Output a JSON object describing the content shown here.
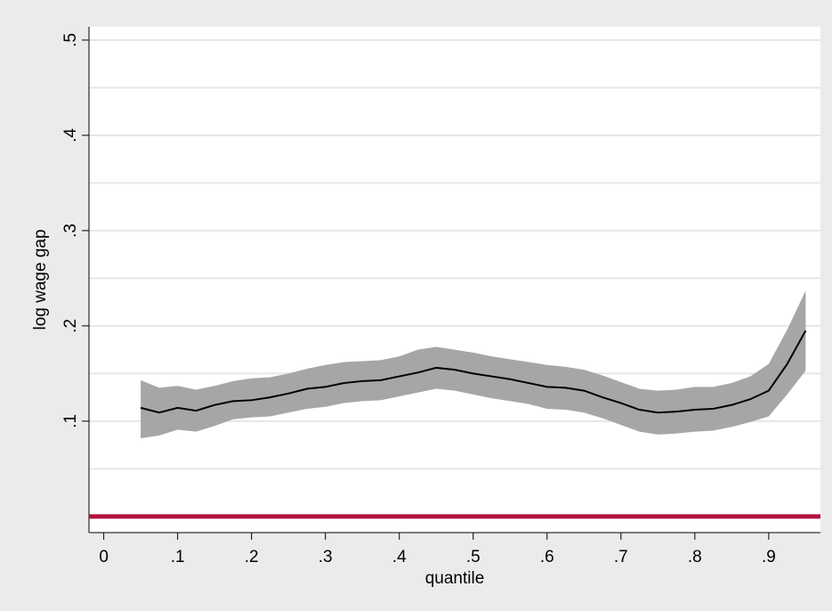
{
  "chart_data": {
    "type": "line_ci",
    "xlabel": "quantile",
    "ylabel": "log wage gap",
    "x": [
      0.05,
      0.075,
      0.1,
      0.125,
      0.15,
      0.175,
      0.2,
      0.225,
      0.25,
      0.275,
      0.3,
      0.325,
      0.35,
      0.375,
      0.4,
      0.425,
      0.45,
      0.475,
      0.5,
      0.525,
      0.55,
      0.575,
      0.6,
      0.625,
      0.65,
      0.675,
      0.7,
      0.725,
      0.75,
      0.775,
      0.8,
      0.825,
      0.85,
      0.875,
      0.9,
      0.925,
      0.95
    ],
    "values": [
      0.114,
      0.109,
      0.114,
      0.111,
      0.117,
      0.121,
      0.122,
      0.125,
      0.129,
      0.134,
      0.136,
      0.14,
      0.142,
      0.143,
      0.147,
      0.151,
      0.156,
      0.154,
      0.15,
      0.147,
      0.144,
      0.14,
      0.136,
      0.135,
      0.132,
      0.125,
      0.119,
      0.112,
      0.109,
      0.11,
      0.112,
      0.113,
      0.117,
      0.123,
      0.132,
      0.16,
      0.195
    ],
    "ci_upper": [
      0.143,
      0.135,
      0.137,
      0.133,
      0.137,
      0.142,
      0.145,
      0.146,
      0.15,
      0.155,
      0.159,
      0.162,
      0.163,
      0.164,
      0.168,
      0.175,
      0.178,
      0.175,
      0.172,
      0.168,
      0.165,
      0.162,
      0.159,
      0.157,
      0.154,
      0.148,
      0.141,
      0.134,
      0.132,
      0.133,
      0.136,
      0.136,
      0.14,
      0.147,
      0.16,
      0.196,
      0.237
    ],
    "ci_lower": [
      0.082,
      0.085,
      0.091,
      0.089,
      0.095,
      0.102,
      0.104,
      0.105,
      0.109,
      0.113,
      0.115,
      0.119,
      0.121,
      0.122,
      0.126,
      0.13,
      0.134,
      0.132,
      0.128,
      0.124,
      0.121,
      0.118,
      0.113,
      0.112,
      0.109,
      0.103,
      0.096,
      0.089,
      0.086,
      0.087,
      0.089,
      0.09,
      0.094,
      0.099,
      0.105,
      0.128,
      0.153
    ],
    "color": "#000000",
    "ci_color": "#a6a6a6",
    "hline": 0,
    "hline_color": "#b5123e",
    "xlim": [
      -0.02,
      0.97
    ],
    "ylim": [
      -0.017,
      0.514
    ],
    "xticks": [
      0,
      {
        "value": 0.1,
        "label": ".1"
      },
      {
        "value": 0.2,
        "label": ".2"
      },
      {
        "value": 0.3,
        "label": ".3"
      },
      {
        "value": 0.4,
        "label": ".4"
      },
      {
        "value": 0.5,
        "label": ".5"
      },
      {
        "value": 0.6,
        "label": ".6"
      },
      {
        "value": 0.7,
        "label": ".7"
      },
      {
        "value": 0.8,
        "label": ".8"
      },
      {
        "value": 0.9,
        "label": ".9"
      }
    ],
    "yticks": [
      {
        "value": 0.1,
        "label": ".1"
      },
      {
        "value": 0.2,
        "label": ".2"
      },
      {
        "value": 0.3,
        "label": ".3"
      },
      {
        "value": 0.4,
        "label": ".4"
      },
      {
        "value": 0.5,
        "label": ".5"
      }
    ],
    "yminor_grid": [
      0.05,
      0.15,
      0.25,
      0.35,
      0.45
    ],
    "grid": true
  }
}
